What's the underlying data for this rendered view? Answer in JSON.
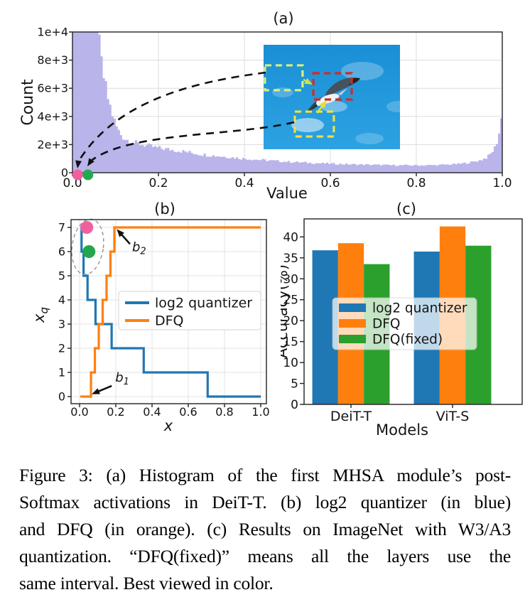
{
  "caption": {
    "lines": [
      "Figure 3: (a) Histogram of the first MHSA module’s post-",
      "Softmax activations in DeiT-T. (b) log2 quantizer (in blue)",
      "and DFQ (in orange). (c) Results on ImageNet with W3/A3",
      "quantization. “DFQ(fixed)” means all the layers use the",
      "same interval. Best viewed in color."
    ],
    "full_text": "Figure 3: (a) Histogram of the first MHSA module’s post-Softmax activations in DeiT-T. (b) log2 quantizer (in blue) and DFQ (in orange). (c) Results on ImageNet with W3/A3 quantization. “DFQ(fixed)” means all the layers use the same interval. Best viewed in color."
  },
  "chart_data": [
    {
      "type": "bar",
      "subtype": "histogram",
      "title": "(a)",
      "xlabel": "Value",
      "ylabel": "Count",
      "xlim": [
        0.0,
        1.0
      ],
      "ylim": [
        0,
        10000
      ],
      "xticks": [
        0.0,
        0.2,
        0.4,
        0.6,
        0.8,
        1.0
      ],
      "xtick_labels": [
        "0.0",
        "0.2",
        "0.4",
        "0.6",
        "0.8",
        "1.0"
      ],
      "yticks": [
        0,
        2000,
        4000,
        6000,
        8000,
        10000
      ],
      "ytick_labels": [
        "0",
        "2e+3",
        "4e+3",
        "6e+3",
        "8e+3",
        "1e+4"
      ],
      "grid": true,
      "bar_color": "#b9b4ea",
      "n_bins": 200,
      "clip_max": 10000,
      "density_profile": [
        [
          0,
          11000
        ],
        [
          0.055,
          11000
        ],
        [
          0.06,
          9500
        ],
        [
          0.07,
          7200
        ],
        [
          0.08,
          5600
        ],
        [
          0.09,
          4400
        ],
        [
          0.1,
          3400
        ],
        [
          0.11,
          2800
        ],
        [
          0.12,
          2450
        ],
        [
          0.14,
          2150
        ],
        [
          0.17,
          1950
        ],
        [
          0.2,
          1750
        ],
        [
          0.25,
          1550
        ],
        [
          0.3,
          1300
        ],
        [
          0.35,
          1150
        ],
        [
          0.4,
          1000
        ],
        [
          0.45,
          880
        ],
        [
          0.5,
          780
        ],
        [
          0.55,
          700
        ],
        [
          0.6,
          640
        ],
        [
          0.65,
          590
        ],
        [
          0.7,
          560
        ],
        [
          0.75,
          530
        ],
        [
          0.8,
          520
        ],
        [
          0.85,
          540
        ],
        [
          0.9,
          620
        ],
        [
          0.93,
          750
        ],
        [
          0.95,
          900
        ],
        [
          0.965,
          1100
        ],
        [
          0.975,
          1400
        ],
        [
          0.985,
          1900
        ],
        [
          0.992,
          2700
        ],
        [
          1.0,
          4300
        ]
      ],
      "markers": [
        {
          "name": "pink-dot",
          "x": 0.012,
          "y": 0,
          "color": "#f25f9b"
        },
        {
          "name": "green-dot",
          "x": 0.036,
          "y": 0,
          "color": "#23a850"
        }
      ],
      "inset": {
        "description": "flying seagull against blue sky",
        "sky_color_top": "#1a8fd6",
        "sky_color_bottom": "#2da2e2",
        "boxes": [
          {
            "name": "background-patch",
            "color": "#d9f178",
            "frac": [
              0.01,
              0.197,
              0.276,
              0.238
            ],
            "links_to_marker": "pink-dot"
          },
          {
            "name": "bird-patch",
            "color": "#d42b20",
            "frac": [
              0.365,
              0.272,
              0.281,
              0.252
            ]
          },
          {
            "name": "cloud-patch",
            "color": "#f0e23c",
            "frac": [
              0.229,
              0.64,
              0.286,
              0.238
            ],
            "links_to_marker": "green-dot"
          }
        ]
      }
    },
    {
      "type": "line",
      "subtype": "step",
      "title": "(b)",
      "xlabel": {
        "text": "x",
        "italic": true
      },
      "ylabel": {
        "text": "x",
        "sub": "q",
        "italic": true
      },
      "xlim": [
        0.0,
        1.0
      ],
      "ylim": [
        0,
        7
      ],
      "xticks": [
        0.0,
        0.2,
        0.4,
        0.6,
        0.8,
        1.0
      ],
      "xtick_labels": [
        "0.0",
        "0.2",
        "0.4",
        "0.6",
        "0.8",
        "1.0"
      ],
      "yticks": [
        0,
        1,
        2,
        3,
        4,
        5,
        6,
        7
      ],
      "grid": true,
      "series": [
        {
          "name": "log2 quantizer",
          "color": "#1f77b4",
          "start_level": 7,
          "direction": -1,
          "x_start": 0.004,
          "x_end": 1.0,
          "step_boundaries": [
            0.011,
            0.022,
            0.044,
            0.088,
            0.177,
            0.354,
            0.707
          ]
        },
        {
          "name": "DFQ",
          "color": "#ff7f0e",
          "start_level": 0,
          "direction": 1,
          "x_start": 0.004,
          "x_end": 1.0,
          "step_boundaries": [
            0.063,
            0.0845,
            0.106,
            0.1275,
            0.149,
            0.1705,
            0.192
          ]
        }
      ],
      "markers": [
        {
          "name": "pink-dot",
          "x": 0.04,
          "y": 7,
          "color": "#f0609f"
        },
        {
          "name": "green-dot",
          "x": 0.052,
          "y": 6,
          "color": "#23a74d"
        }
      ],
      "ellipse": {
        "cx": 0.045,
        "cy": 6.2,
        "rx": 0.086,
        "ry": 1.15,
        "rotation": 8
      },
      "annotations": [
        {
          "label": "b",
          "sub": "2",
          "text_xy": [
            0.29,
            6.02
          ],
          "arrow_tip": [
            0.205,
            6.93
          ]
        },
        {
          "label": "b",
          "sub": "1",
          "text_xy": [
            0.197,
            0.62
          ],
          "arrow_tip": [
            0.067,
            0.1
          ]
        }
      ],
      "legend": {
        "labels": [
          "log2 quantizer",
          "DFQ"
        ]
      }
    },
    {
      "type": "bar",
      "title": "(c)",
      "xlabel": "Models",
      "ylabel": "Accuracy(%)",
      "categories": [
        "DeiT-T",
        "ViT-S"
      ],
      "series": [
        {
          "name": "log2 quantizer",
          "color": "#1f77b4",
          "values": [
            36.8,
            36.5
          ]
        },
        {
          "name": "DFQ",
          "color": "#ff7f0e",
          "values": [
            38.5,
            42.5
          ]
        },
        {
          "name": "DFQ(fixed)",
          "color": "#2ca02c",
          "values": [
            33.5,
            37.9
          ]
        }
      ],
      "ylim": [
        0,
        44.3
      ],
      "yticks": [
        0,
        5,
        10,
        15,
        20,
        25,
        30,
        35,
        40
      ],
      "grid": false,
      "legend": {
        "labels": [
          "log2 quantizer",
          "DFQ",
          "DFQ(fixed)"
        ]
      }
    }
  ]
}
